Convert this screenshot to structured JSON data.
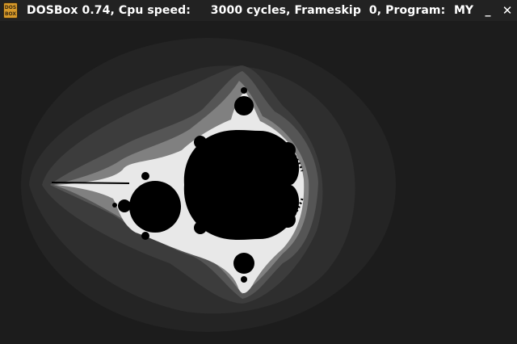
{
  "window": {
    "icon_name": "dosbox-icon",
    "icon_text_top": "DOS",
    "icon_text_bottom": "BOX",
    "title": "DOSBox 0.74, Cpu speed:     3000 cycles, Frameskip  0, Program:",
    "title_suffix": "MY",
    "minimize_label": "_",
    "close_label": "✕"
  },
  "colors": {
    "titlebar_bg": "#222222",
    "background": "#1c1c1c",
    "band_1": "#242424",
    "band_2": "#2e2e2e",
    "band_3": "#3c3c3c",
    "band_4": "#555555",
    "band_5": "#808080",
    "edge": "#e8e8e8",
    "set_interior": "#000000",
    "icon_accent": "#d89a2a"
  }
}
